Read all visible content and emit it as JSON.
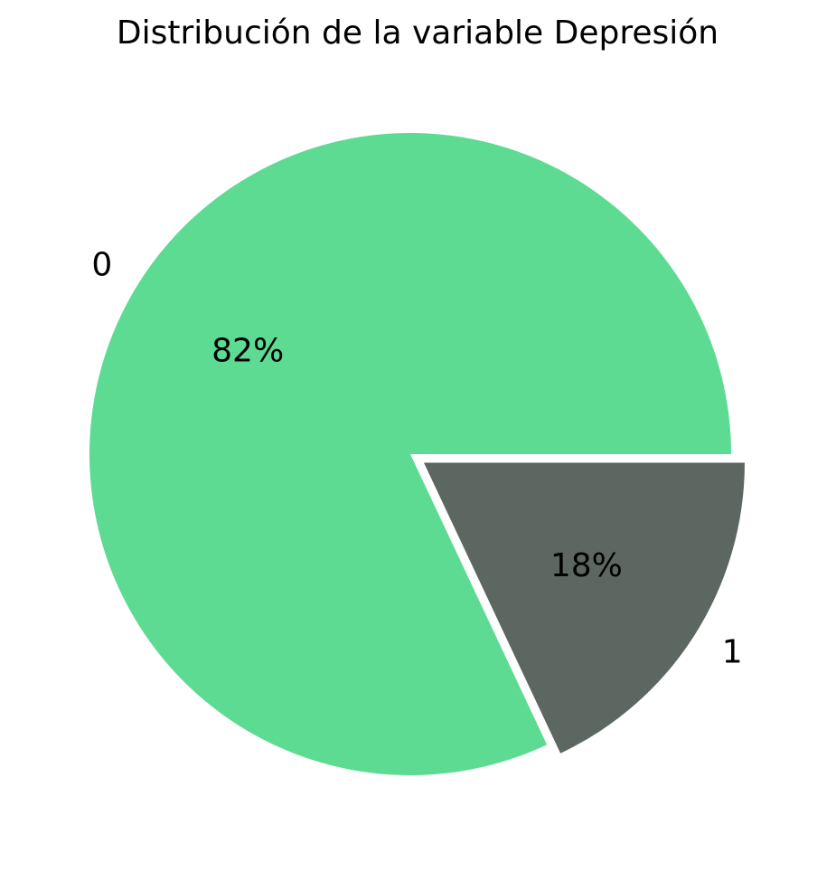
{
  "chart_data": {
    "type": "pie",
    "title": "Distribución de la variable Depresión",
    "slices": [
      {
        "label": "0",
        "value": 82,
        "pct_label": "82%",
        "color": "#5ddb93",
        "exploded": false
      },
      {
        "label": "1",
        "value": 18,
        "pct_label": "18%",
        "color": "#5d6761",
        "exploded": true
      }
    ],
    "legend": "none"
  }
}
